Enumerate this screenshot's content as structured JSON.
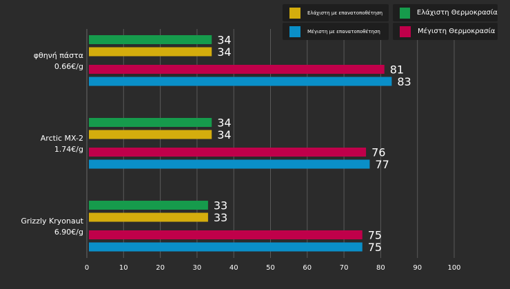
{
  "chart_data": {
    "type": "bar",
    "orientation": "horizontal",
    "categories": [
      {
        "name": "φθηνή πάστα",
        "price": "0.66€/g"
      },
      {
        "name": "Arctic MX-2",
        "price": "1.74€/g"
      },
      {
        "name": "Grizzly Kryonaut",
        "price": "6.90€/g"
      }
    ],
    "series": [
      {
        "name": "Ελάχιστη Θερμοκρασία",
        "color": "#169b4c",
        "values": [
          34,
          34,
          33
        ]
      },
      {
        "name": "Ελάχιστη με επανατοποθέτηση",
        "color": "#d4ad0d",
        "values": [
          34,
          34,
          33
        ]
      },
      {
        "name": "Μέγιστη Θερμοκρασία",
        "color": "#c0004a",
        "values": [
          81,
          76,
          75
        ]
      },
      {
        "name": "Μέγιστη με επανατοποθέτηση",
        "color": "#0a8fc8",
        "values": [
          83,
          77,
          75
        ]
      }
    ],
    "xlim": [
      0,
      100
    ],
    "xticks": [
      0,
      10,
      20,
      30,
      40,
      50,
      60,
      70,
      80,
      90,
      100
    ],
    "grid": true,
    "legend_position": "top-right",
    "title": "",
    "xlabel": "",
    "ylabel": ""
  }
}
